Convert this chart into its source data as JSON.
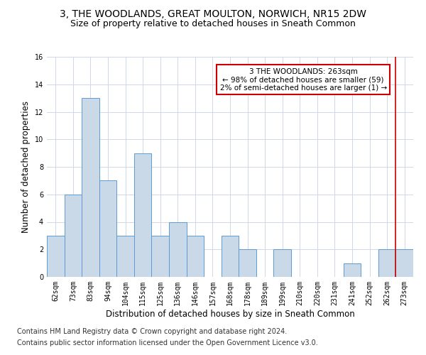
{
  "title": "3, THE WOODLANDS, GREAT MOULTON, NORWICH, NR15 2DW",
  "subtitle": "Size of property relative to detached houses in Sneath Common",
  "xlabel": "Distribution of detached houses by size in Sneath Common",
  "ylabel": "Number of detached properties",
  "categories": [
    "62sqm",
    "73sqm",
    "83sqm",
    "94sqm",
    "104sqm",
    "115sqm",
    "125sqm",
    "136sqm",
    "146sqm",
    "157sqm",
    "168sqm",
    "178sqm",
    "189sqm",
    "199sqm",
    "210sqm",
    "220sqm",
    "231sqm",
    "241sqm",
    "252sqm",
    "262sqm",
    "273sqm"
  ],
  "values": [
    3,
    6,
    13,
    7,
    3,
    9,
    3,
    4,
    3,
    0,
    3,
    2,
    0,
    2,
    0,
    0,
    0,
    1,
    0,
    2,
    2
  ],
  "bar_color": "#c9d9e8",
  "bar_edge_color": "#5b9bd5",
  "grid_color": "#d0d8e8",
  "annotation_text": "3 THE WOODLANDS: 263sqm\n← 98% of detached houses are smaller (59)\n2% of semi-detached houses are larger (1) →",
  "annotation_box_color": "#ffffff",
  "annotation_box_edge_color": "#cc0000",
  "vline_x": 19.5,
  "vline_color": "#cc0000",
  "ylim": [
    0,
    16
  ],
  "yticks": [
    0,
    2,
    4,
    6,
    8,
    10,
    12,
    14,
    16
  ],
  "footer_line1": "Contains HM Land Registry data © Crown copyright and database right 2024.",
  "footer_line2": "Contains public sector information licensed under the Open Government Licence v3.0.",
  "title_fontsize": 10,
  "subtitle_fontsize": 9,
  "xlabel_fontsize": 8.5,
  "ylabel_fontsize": 8.5,
  "tick_fontsize": 7,
  "footer_fontsize": 7,
  "annot_fontsize": 7.5
}
